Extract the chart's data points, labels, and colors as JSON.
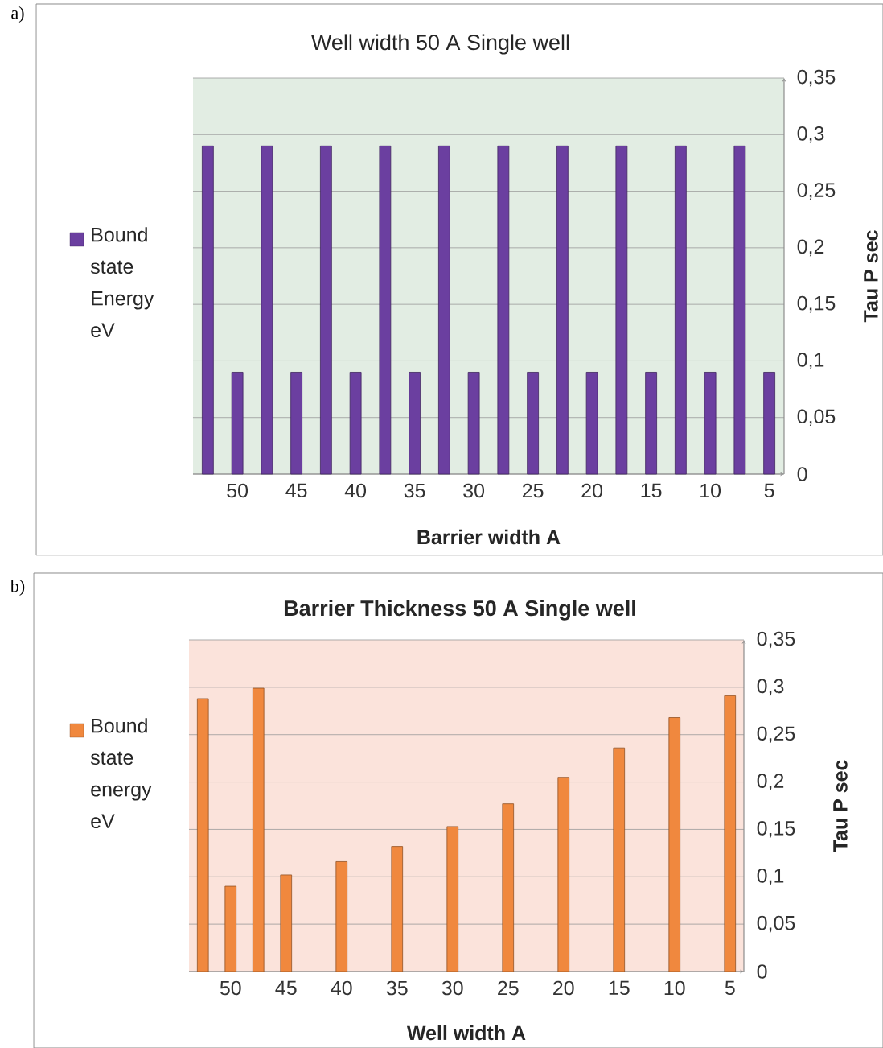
{
  "chart_data": [
    {
      "type": "bar",
      "title": "Well width 50 A  Single well",
      "xlabel": "Barrier width A",
      "ylabel": "Tau P sec",
      "categories": [
        null,
        "50",
        null,
        "45",
        null,
        "40",
        null,
        "35",
        null,
        "30",
        null,
        "25",
        null,
        "20",
        null,
        "15",
        null,
        "10",
        null,
        "5"
      ],
      "series": [
        {
          "name": "Bound state Energy eV",
          "color": "#6b3fa0",
          "values": [
            0.29,
            0.09,
            0.29,
            0.09,
            0.29,
            0.09,
            0.29,
            0.09,
            0.29,
            0.09,
            0.29,
            0.09,
            0.29,
            0.09,
            0.29,
            0.09,
            0.29,
            0.09,
            0.29,
            0.09
          ]
        }
      ],
      "ylim": [
        0,
        0.35
      ],
      "yticks": [
        0,
        {
          "value": 0.05,
          "label": "0,05"
        },
        {
          "value": 0.1,
          "label": "0,1"
        },
        {
          "value": 0.15,
          "label": "0,15"
        },
        {
          "value": 0.2,
          "label": "0,2"
        },
        {
          "value": 0.25,
          "label": "0,25"
        },
        {
          "value": 0.3,
          "label": "0,3"
        },
        {
          "value": 0.35,
          "label": "0,35"
        }
      ],
      "grid": "y",
      "legend": "left",
      "annotations": [
        "a)"
      ]
    },
    {
      "type": "bar",
      "title": "Barrier Thickness 50 A  Single well",
      "xlabel": "Well width A",
      "ylabel": "Tau P sec",
      "categories": [
        null,
        "50",
        null,
        "45",
        null,
        "40",
        null,
        "35",
        null,
        "30",
        null,
        "25",
        null,
        "20",
        null,
        "15",
        null,
        "10",
        null,
        "5"
      ],
      "series": [
        {
          "name": "Bound state energy eV",
          "color": "#f0883e",
          "values": [
            0.288,
            0.09,
            0.299,
            0.102,
            null,
            0.116,
            null,
            0.132,
            null,
            0.153,
            null,
            0.177,
            null,
            0.205,
            null,
            0.236,
            null,
            0.268,
            null,
            0.291
          ]
        }
      ],
      "ylim": [
        0,
        0.35
      ],
      "yticks": [
        0,
        {
          "value": 0.05,
          "label": "0,05"
        },
        {
          "value": 0.1,
          "label": "0,1"
        },
        {
          "value": 0.15,
          "label": "0,15"
        },
        {
          "value": 0.2,
          "label": "0,2"
        },
        {
          "value": 0.25,
          "label": "0,25"
        },
        {
          "value": 0.3,
          "label": "0,3"
        },
        {
          "value": 0.35,
          "label": "0,35"
        }
      ],
      "grid": "y",
      "legend": "left",
      "annotations": [
        "b)"
      ]
    }
  ]
}
